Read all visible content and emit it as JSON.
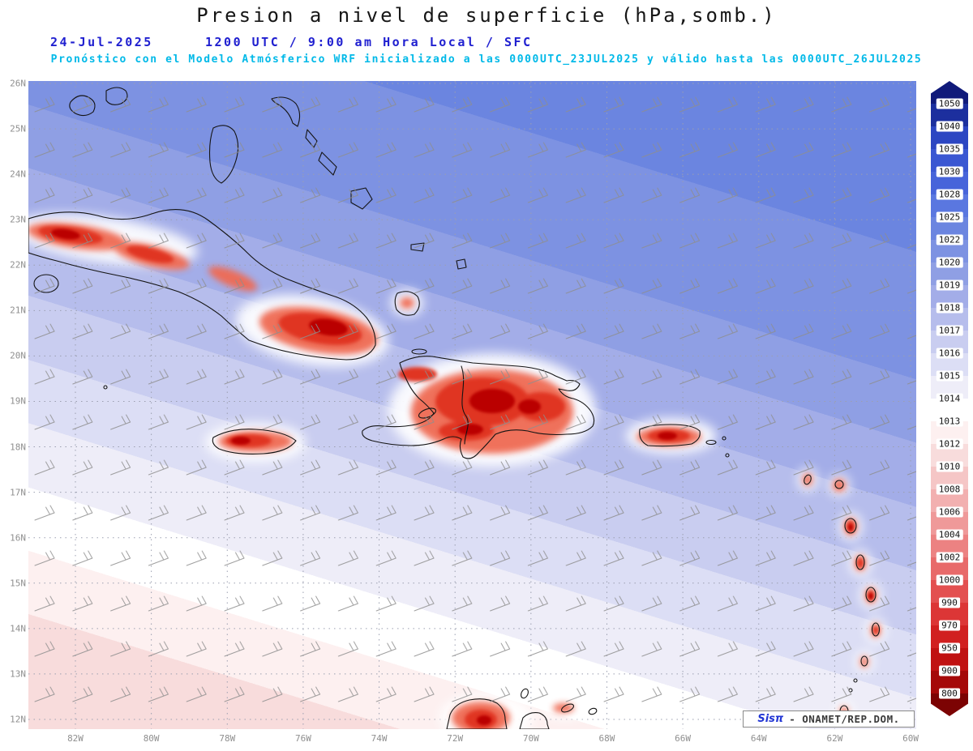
{
  "header": {
    "title": "Presion a nivel de superficie (hPa,somb.)",
    "date": "24-Jul-2025",
    "time": "1200 UTC / 9:00 am Hora Local / SFC",
    "model_line": "Pronóstico con el Modelo Atmósferico WRF inicializado a las 0000UTC_23JUL2025 y válido hasta las  0000UTC_26JUL2025"
  },
  "footer": {
    "brand": "Sisπ",
    "credit": "- ONAMET/REP.DOM."
  },
  "chart_data": {
    "type": "heatmap",
    "title": "Presion a nivel de superficie (hPa,somb.)",
    "variable": "Surface (sea level) pressure, shaded",
    "units": "hPa",
    "model": "WRF",
    "initialized": "0000UTC_23JUL2025",
    "valid_time": "24-Jul-2025 1200 UTC / 9:00 am Hora Local / SFC",
    "valid_until": "0000UTC_26JUL2025",
    "lat_ticks": [
      "26N",
      "25N",
      "24N",
      "23N",
      "22N",
      "21N",
      "20N",
      "19N",
      "18N",
      "17N",
      "16N",
      "15N",
      "14N",
      "13N",
      "12N"
    ],
    "lon_ticks": [
      "82W",
      "80W",
      "78W",
      "76W",
      "74W",
      "72W",
      "70W",
      "68W",
      "66W",
      "64W",
      "62W",
      "60W"
    ],
    "colorbar": {
      "position": "right",
      "levels": [
        1050,
        1040,
        1035,
        1030,
        1028,
        1025,
        1022,
        1020,
        1019,
        1018,
        1017,
        1016,
        1015,
        1014,
        1013,
        1012,
        1010,
        1008,
        1006,
        1004,
        1002,
        1000,
        990,
        970,
        950,
        900,
        800
      ],
      "colors": [
        "#101a7a",
        "#1c2f9e",
        "#2c46c2",
        "#3a57d2",
        "#4764da",
        "#5a77e0",
        "#6b85e0",
        "#7d92e2",
        "#8f9fe4",
        "#a3ade8",
        "#b6bdec",
        "#c9cdf0",
        "#dcdef5",
        "#eeedf8",
        "#ffffff",
        "#fdf0f0",
        "#f8dcdc",
        "#f5c6c6",
        "#f2b0b0",
        "#ef9999",
        "#ec8282",
        "#e86a6a",
        "#e35050",
        "#dc3636",
        "#d12020",
        "#c01212",
        "#a50909",
        "#7c0303"
      ]
    },
    "field": {
      "northeast_area_hpa": 1025,
      "northwest_corner_hpa": 1020,
      "southeast_corner_hpa": 1015,
      "southwest_corner_hpa": 1012,
      "island_minima_hpa": 995,
      "description": "Pressure decreases from ~1022-1025 hPa over the open NE Atlantic toward ~1012-1013 hPa (white/pink) in the SW of the domain; sharp red shaded minima (~990-1005 hPa, terrain-reduced) over Cuba, Jamaica, Hispaniola, Puerto Rico, the Lesser Antilles and the Guajira peninsula."
    },
    "wind_barbs": "gray easterly trade-wind barbs plotted on a regular grid",
    "grid": "dotted graticule: 1° latitude x 2° longitude"
  }
}
